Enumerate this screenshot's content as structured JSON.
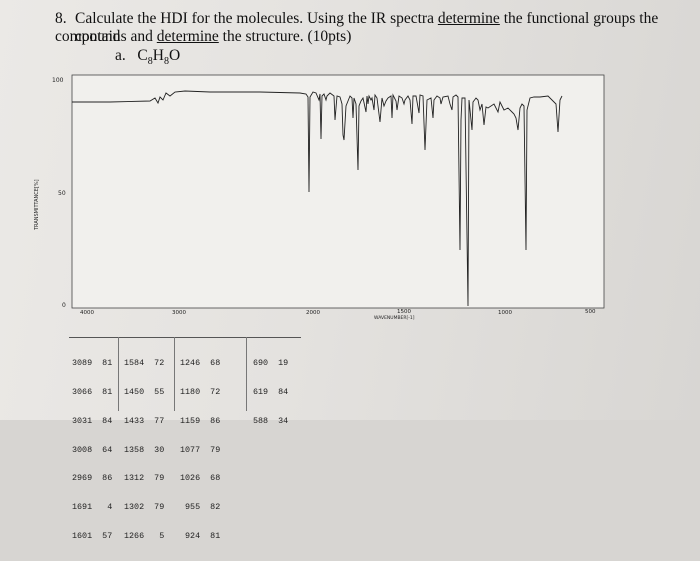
{
  "question": {
    "number": "8.",
    "line1_a": "Calculate the HDI for the molecules. Using the IR spectra ",
    "line1_u": "determine",
    "line1_b": " the functional groups the compound",
    "line2_a": "contains and ",
    "line2_u": "determine",
    "line2_b": " the structure. (10pts)",
    "part_label": "a.",
    "formula": {
      "C": "C",
      "c_sub": "8",
      "H": "H",
      "h_sub": "8",
      "O": "O"
    }
  },
  "spectrum": {
    "y_label": "TRANSMITTANCE[%]",
    "y_ticks": [
      "100",
      "50",
      "0"
    ],
    "x_ticks": [
      "4000",
      "3000",
      "2000",
      "1500",
      "1000",
      "500"
    ],
    "x_label": "WAVENUMBER[-1]"
  },
  "peak_table": [
    [
      [
        "3089",
        "81"
      ],
      [
        "3066",
        "81"
      ],
      [
        "3031",
        "84"
      ],
      [
        "3008",
        "64"
      ],
      [
        "2969",
        "86"
      ],
      [
        "1691",
        "4"
      ],
      [
        "1601",
        "57"
      ]
    ],
    [
      [
        "1584",
        "72"
      ],
      [
        "1450",
        "55"
      ],
      [
        "1433",
        "77"
      ],
      [
        "1358",
        "30"
      ],
      [
        "1312",
        "79"
      ],
      [
        "1302",
        "79"
      ],
      [
        "1266",
        "5"
      ]
    ],
    [
      [
        "1246",
        "68"
      ],
      [
        "1180",
        "72"
      ],
      [
        "1159",
        "86"
      ],
      [
        "1077",
        "79"
      ],
      [
        "1026",
        "68"
      ],
      [
        "955",
        "82"
      ],
      [
        "924",
        "81"
      ]
    ],
    [
      [
        "690",
        "19"
      ],
      [
        "619",
        "84"
      ],
      [
        "588",
        "34"
      ]
    ]
  ]
}
